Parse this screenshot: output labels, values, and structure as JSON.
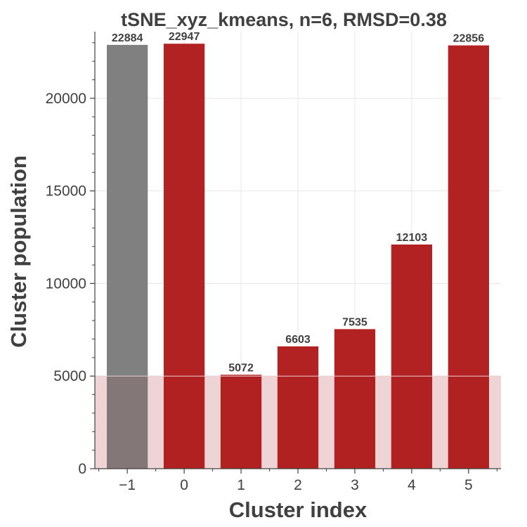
{
  "chart_data": {
    "type": "bar",
    "title": "tSNE_xyz_kmeans, n=6, RMSD=0.38",
    "xlabel": "Cluster index",
    "ylabel": "Cluster population",
    "categories": [
      "−1",
      "0",
      "1",
      "2",
      "3",
      "4",
      "5"
    ],
    "values": [
      22884,
      22947,
      5072,
      6603,
      7535,
      12103,
      22856
    ],
    "value_labels": [
      "22884",
      "22947",
      "5072",
      "6603",
      "7535",
      "12103",
      "22856"
    ],
    "bar_colors": [
      "#808080",
      "#b22222",
      "#b22222",
      "#b22222",
      "#b22222",
      "#b22222",
      "#b22222"
    ],
    "ylim": [
      0,
      23600
    ],
    "yticks": [
      0,
      5000,
      10000,
      15000,
      20000
    ],
    "ytick_labels": [
      "0",
      "5000",
      "10000",
      "15000",
      "20000"
    ],
    "threshold": 5000,
    "threshold_color": "#f5e6e6",
    "grid": true
  }
}
